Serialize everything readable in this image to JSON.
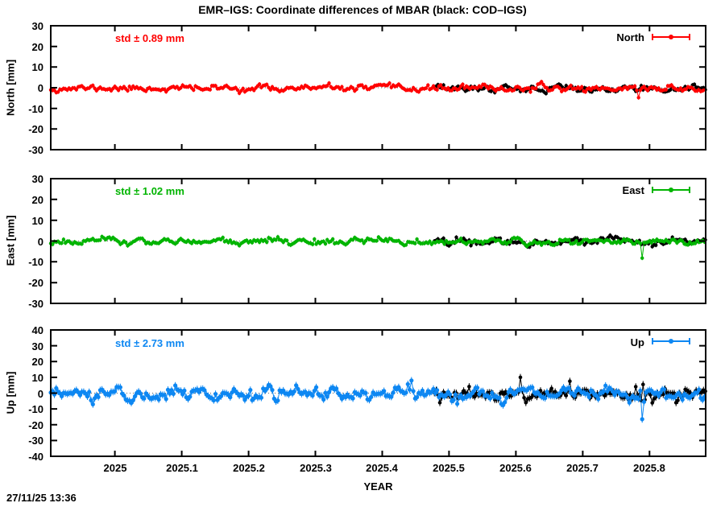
{
  "title": "EMR–IGS: Coordinate differences of MBAR (black: COD–IGS)",
  "timestamp": "27/11/25 13:36",
  "colors": {
    "north": "#ff0000",
    "east": "#00b400",
    "up": "#0d87f2",
    "cod": "#000000",
    "zeroline": "#666666"
  },
  "chart_data": {
    "type": "scatter",
    "title": "EMR–IGS: Coordinate differences of MBAR (black: COD–IGS)",
    "grid": "off",
    "legend_position": "top-right-inside",
    "x_axis": {
      "label": "YEAR",
      "range": [
        2024.904,
        2025.884
      ],
      "ticks": [
        2025,
        2025.1,
        2025.2,
        2025.3,
        2025.4,
        2025.5,
        2025.6,
        2025.7,
        2025.8
      ],
      "tick_labels": [
        "2025",
        "2025.1",
        "2025.2",
        "2025.3",
        "2025.4",
        "2025.5",
        "2025.6",
        "2025.7",
        "2025.8"
      ]
    },
    "panels": [
      {
        "name": "North",
        "ylabel": "North [mm]",
        "std_label": "std ± 0.89 mm",
        "std_mm": 0.89,
        "legend": "North",
        "color": "#ff0000",
        "ylim": [
          -30,
          30
        ],
        "yticks": [
          30,
          20,
          10,
          0,
          -10,
          -20,
          -30
        ],
        "ytick_labels": [
          "30",
          "20",
          "10",
          "0",
          "-10",
          "-20",
          "-30"
        ],
        "series": [
          {
            "name": "COD–IGS",
            "color": "#000000",
            "x_start": 2025.478,
            "x_end": 2025.884,
            "step_years": 0.00274,
            "mean_mm": -0.5,
            "std_mm": 0.85,
            "errorbar_mm": 1.0,
            "marker_px": 2.2,
            "seed": 12,
            "outliers": []
          },
          {
            "name": "EMR–IGS",
            "color": "#ff0000",
            "x_start": 2024.904,
            "x_end": 2025.884,
            "step_years": 0.00274,
            "mean_mm": -0.3,
            "std_mm": 0.85,
            "errorbar_mm": 1.0,
            "marker_px": 2.2,
            "seed": 11,
            "outliers": [
              [
                2025.783,
                -4.8
              ]
            ]
          }
        ]
      },
      {
        "name": "East",
        "ylabel": "East [mm]",
        "std_label": "std ± 1.02 mm",
        "std_mm": 1.02,
        "legend": "East",
        "color": "#00b400",
        "ylim": [
          -30,
          30
        ],
        "yticks": [
          30,
          20,
          10,
          0,
          -10,
          -20,
          -30
        ],
        "ytick_labels": [
          "30",
          "20",
          "10",
          "0",
          "-10",
          "-20",
          "-30"
        ],
        "series": [
          {
            "name": "COD–IGS",
            "color": "#000000",
            "x_start": 2025.478,
            "x_end": 2025.884,
            "step_years": 0.00274,
            "mean_mm": -0.1,
            "std_mm": 0.95,
            "errorbar_mm": 1.0,
            "marker_px": 2.2,
            "seed": 22,
            "outliers": []
          },
          {
            "name": "EMR–IGS",
            "color": "#00b400",
            "x_start": 2024.904,
            "x_end": 2025.884,
            "step_years": 0.00274,
            "mean_mm": -0.2,
            "std_mm": 0.95,
            "errorbar_mm": 1.0,
            "marker_px": 2.2,
            "seed": 21,
            "outliers": [
              [
                2025.79,
                -8.2
              ]
            ]
          }
        ]
      },
      {
        "name": "Up",
        "ylabel": "Up [mm]",
        "std_label": "std ± 2.73 mm",
        "std_mm": 2.73,
        "legend": "Up",
        "color": "#0d87f2",
        "ylim": [
          -40,
          40
        ],
        "yticks": [
          40,
          30,
          20,
          10,
          0,
          -10,
          -20,
          -30,
          -40
        ],
        "ytick_labels": [
          "40",
          "30",
          "20",
          "10",
          "0",
          "-10",
          "-20",
          "-30",
          "-40"
        ],
        "series": [
          {
            "name": "COD–IGS",
            "color": "#000000",
            "x_start": 2025.478,
            "x_end": 2025.884,
            "step_years": 0.00274,
            "mean_mm": -0.5,
            "std_mm": 2.3,
            "errorbar_mm": 2.2,
            "marker_px": 2.3,
            "seed": 32,
            "outliers": [
              [
                2025.607,
                10.0
              ],
              [
                2025.79,
                5.5
              ]
            ]
          },
          {
            "name": "EMR–IGS",
            "color": "#0d87f2",
            "x_start": 2024.904,
            "x_end": 2025.884,
            "step_years": 0.00274,
            "mean_mm": -0.5,
            "std_mm": 2.3,
            "errorbar_mm": 2.2,
            "marker_px": 2.6,
            "seed": 31,
            "outliers": [
              [
                2025.445,
                8.0
              ],
              [
                2025.79,
                -16.5
              ],
              [
                2025.793,
                -5.5
              ]
            ]
          }
        ]
      }
    ],
    "annotations": {
      "timestamp": "27/11/25 13:36"
    }
  }
}
